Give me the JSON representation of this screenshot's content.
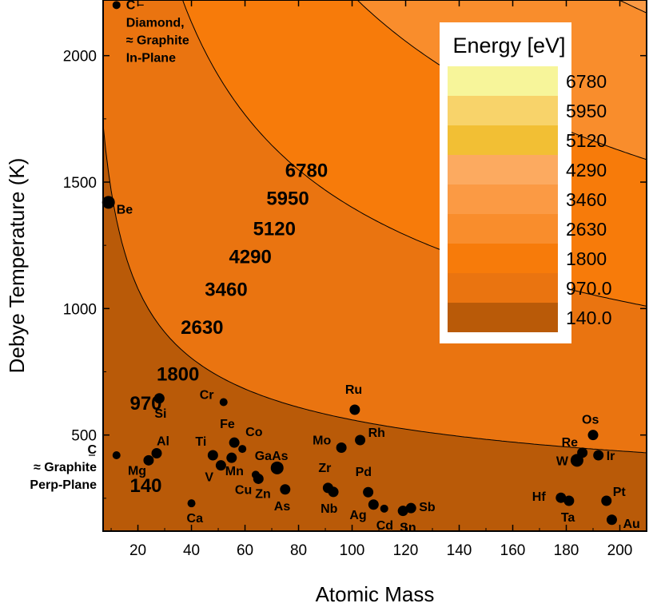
{
  "chart_data": {
    "type": "contour",
    "title": "",
    "xlabel": "Atomic Mass",
    "ylabel": "Debye Temperature (K)",
    "xlim": [
      7,
      210
    ],
    "ylim": [
      120,
      2220
    ],
    "x_ticks": [
      20,
      40,
      60,
      80,
      100,
      120,
      140,
      160,
      180,
      200
    ],
    "y_ticks": [
      500,
      1000,
      1500,
      2000
    ],
    "legend": {
      "title": "Energy [eV]",
      "position": "top-right",
      "levels": [
        "6780",
        "5950",
        "5120",
        "4290",
        "3460",
        "2630",
        "1800",
        "970.0",
        "140.0"
      ],
      "colors": [
        "#f7f59a",
        "#f8d36a",
        "#f2bf34",
        "#fcaa60",
        "#fb9a44",
        "#f98d2c",
        "#f77b0a",
        "#ea7410",
        "#b95a08"
      ]
    },
    "contours": [
      {
        "level": 140,
        "label": "140",
        "label_at": [
          17,
          275
        ],
        "k": 4.2
      },
      {
        "level": 970,
        "label": "970",
        "label_at": [
          17,
          600
        ],
        "k": 12.6
      },
      {
        "level": 1800,
        "label": "1800",
        "label_at": [
          27,
          715
        ],
        "k": 21
      },
      {
        "level": 2630,
        "label": "2630",
        "label_at": [
          36,
          900
        ],
        "k": 29.4
      },
      {
        "level": 3460,
        "label": "3460",
        "label_at": [
          45,
          1050
        ],
        "k": 37.8
      },
      {
        "level": 4290,
        "label": "4290",
        "label_at": [
          54,
          1180
        ],
        "k": 46.2
      },
      {
        "level": 5120,
        "label": "5120",
        "label_at": [
          63,
          1290
        ],
        "k": 54.6
      },
      {
        "level": 5950,
        "label": "5950",
        "label_at": [
          68,
          1410
        ],
        "k": 63
      },
      {
        "level": 6780,
        "label": "6780",
        "label_at": [
          75,
          1520
        ],
        "k": 71.4
      }
    ],
    "points": [
      {
        "label": "C\nDiamond,\n≈ Graphite\nIn-Plane",
        "x": 12,
        "y": 2200
      },
      {
        "label": "Be",
        "x": 9,
        "y": 1420
      },
      {
        "label": "C\n≈ Graphite\nPerp-Plane",
        "x": 12,
        "y": 420
      },
      {
        "label": "Si",
        "x": 28,
        "y": 645
      },
      {
        "label": "Al",
        "x": 27,
        "y": 428
      },
      {
        "label": "Mg",
        "x": 24,
        "y": 400
      },
      {
        "label": "Ca",
        "x": 40,
        "y": 230
      },
      {
        "label": "Ti",
        "x": 48,
        "y": 420
      },
      {
        "label": "V",
        "x": 51,
        "y": 380
      },
      {
        "label": "Cr",
        "x": 52,
        "y": 630
      },
      {
        "label": "Mn",
        "x": 55,
        "y": 410
      },
      {
        "label": "Fe",
        "x": 56,
        "y": 470
      },
      {
        "label": "Co",
        "x": 59,
        "y": 445
      },
      {
        "label": "Cu",
        "x": 64,
        "y": 343
      },
      {
        "label": "Zn",
        "x": 65,
        "y": 327
      },
      {
        "label": "GaAs",
        "x": 72,
        "y": 370
      },
      {
        "label": "As",
        "x": 75,
        "y": 285
      },
      {
        "label": "Zr",
        "x": 91,
        "y": 291
      },
      {
        "label": "Nb",
        "x": 93,
        "y": 275
      },
      {
        "label": "Mo",
        "x": 96,
        "y": 450
      },
      {
        "label": "Ru",
        "x": 101,
        "y": 600
      },
      {
        "label": "Rh",
        "x": 103,
        "y": 480
      },
      {
        "label": "Pd",
        "x": 106,
        "y": 274
      },
      {
        "label": "Ag",
        "x": 108,
        "y": 225
      },
      {
        "label": "Cd",
        "x": 112,
        "y": 209
      },
      {
        "label": "Sn",
        "x": 119,
        "y": 200
      },
      {
        "label": "Sb",
        "x": 122,
        "y": 211
      },
      {
        "label": "Hf",
        "x": 178,
        "y": 252
      },
      {
        "label": "Ta",
        "x": 181,
        "y": 240
      },
      {
        "label": "W",
        "x": 184,
        "y": 400
      },
      {
        "label": "Re",
        "x": 186,
        "y": 430
      },
      {
        "label": "Os",
        "x": 190,
        "y": 500
      },
      {
        "label": "Ir",
        "x": 192,
        "y": 420
      },
      {
        "label": "Pt",
        "x": 195,
        "y": 240
      },
      {
        "label": "Au",
        "x": 197,
        "y": 165
      }
    ]
  }
}
